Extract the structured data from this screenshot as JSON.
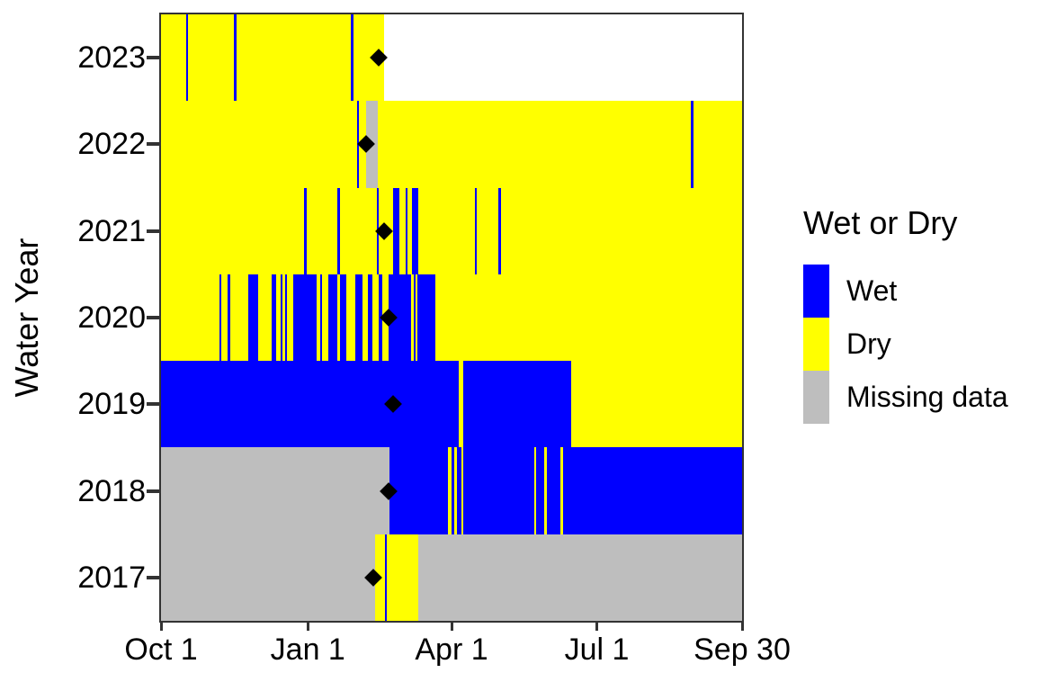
{
  "chart_data": {
    "type": "heatmap",
    "title": "",
    "xlabel": "",
    "ylabel": "Water Year",
    "days_per_year": 365,
    "x_ticks": [
      {
        "label": "Oct 1",
        "day": 0
      },
      {
        "label": "Jan 1",
        "day": 92
      },
      {
        "label": "Apr 1",
        "day": 182
      },
      {
        "label": "Jul 1",
        "day": 273
      },
      {
        "label": "Sep 30",
        "day": 364
      }
    ],
    "y_categories": [
      "2023",
      "2022",
      "2021",
      "2020",
      "2019",
      "2018",
      "2017"
    ],
    "legend": {
      "title": "Wet or Dry",
      "entries": [
        {
          "label": "Wet",
          "status": "wet",
          "color": "#0000FF"
        },
        {
          "label": "Dry",
          "status": "dry",
          "color": "#FFFF00"
        },
        {
          "label": "Missing data",
          "status": "missing",
          "color": "#BEBEBE"
        }
      ]
    },
    "colors": {
      "wet": "#0000FF",
      "dry": "#FFFF00",
      "missing": "#BEBEBE",
      "none": "#FFFFFF",
      "axis": "#333333",
      "marker": "#000000",
      "text": "#000000"
    },
    "rows": [
      {
        "year": "2023",
        "marker_day": 137,
        "marker_date_approx": "Feb 15",
        "segments": [
          [
            0,
            16,
            "dry"
          ],
          [
            16,
            17,
            "wet"
          ],
          [
            17,
            46,
            "dry"
          ],
          [
            46,
            47.5,
            "wet"
          ],
          [
            47.5,
            119.5,
            "dry"
          ],
          [
            119.5,
            121,
            "wet"
          ],
          [
            121,
            140,
            "dry"
          ],
          [
            140,
            365,
            "none"
          ]
        ]
      },
      {
        "year": "2022",
        "marker_day": 129,
        "marker_date_approx": "Feb 7",
        "segments": [
          [
            0,
            123,
            "dry"
          ],
          [
            123,
            124.5,
            "wet"
          ],
          [
            124.5,
            129,
            "dry"
          ],
          [
            129,
            136,
            "missing"
          ],
          [
            136,
            333,
            "dry"
          ],
          [
            333,
            334.5,
            "wet"
          ],
          [
            334.5,
            365,
            "dry"
          ]
        ]
      },
      {
        "year": "2021",
        "marker_day": 140,
        "marker_date_approx": "Feb 18",
        "segments": [
          [
            0,
            90,
            "dry"
          ],
          [
            90,
            91.5,
            "wet"
          ],
          [
            91.5,
            111,
            "dry"
          ],
          [
            111,
            112.5,
            "wet"
          ],
          [
            112.5,
            135.5,
            "dry"
          ],
          [
            135.5,
            136.5,
            "wet"
          ],
          [
            136.5,
            145.5,
            "dry"
          ],
          [
            145.5,
            150,
            "wet"
          ],
          [
            150,
            153.5,
            "dry"
          ],
          [
            153.5,
            155,
            "wet"
          ],
          [
            155,
            157.5,
            "dry"
          ],
          [
            157.5,
            161.5,
            "wet"
          ],
          [
            161.5,
            197,
            "dry"
          ],
          [
            197,
            198.5,
            "wet"
          ],
          [
            198.5,
            212,
            "dry"
          ],
          [
            212,
            213.5,
            "wet"
          ],
          [
            213.5,
            365,
            "dry"
          ]
        ]
      },
      {
        "year": "2020",
        "marker_day": 143,
        "marker_date_approx": "Feb 21",
        "segments": [
          [
            0,
            37,
            "dry"
          ],
          [
            37,
            38,
            "wet"
          ],
          [
            38,
            42,
            "dry"
          ],
          [
            42,
            43.5,
            "wet"
          ],
          [
            43.5,
            55,
            "dry"
          ],
          [
            55,
            61,
            "wet"
          ],
          [
            61,
            69.5,
            "dry"
          ],
          [
            69.5,
            72.5,
            "wet"
          ],
          [
            72.5,
            75,
            "dry"
          ],
          [
            75,
            76.5,
            "wet"
          ],
          [
            76.5,
            78,
            "dry"
          ],
          [
            78,
            79,
            "wet"
          ],
          [
            79,
            83,
            "dry"
          ],
          [
            83,
            98,
            "wet"
          ],
          [
            98,
            100,
            "dry"
          ],
          [
            100,
            101,
            "wet"
          ],
          [
            101,
            105,
            "dry"
          ],
          [
            105,
            111,
            "wet"
          ],
          [
            111,
            112.5,
            "dry"
          ],
          [
            112.5,
            116.5,
            "wet"
          ],
          [
            116.5,
            122,
            "dry"
          ],
          [
            122,
            126.5,
            "wet"
          ],
          [
            126.5,
            130,
            "dry"
          ],
          [
            130,
            132.5,
            "wet"
          ],
          [
            132.5,
            137,
            "dry"
          ],
          [
            137,
            139,
            "wet"
          ],
          [
            139,
            143,
            "dry"
          ],
          [
            143,
            157.3,
            "wet"
          ],
          [
            157.3,
            158.6,
            "dry"
          ],
          [
            158.6,
            160,
            "wet"
          ],
          [
            160,
            160.8,
            "dry"
          ],
          [
            160.8,
            172.5,
            "wet"
          ],
          [
            172.5,
            365,
            "dry"
          ]
        ]
      },
      {
        "year": "2019",
        "marker_day": 146,
        "marker_date_approx": "Feb 24",
        "segments": [
          [
            0,
            187,
            "wet"
          ],
          [
            187,
            190,
            "dry"
          ],
          [
            190,
            257.5,
            "wet"
          ],
          [
            257.5,
            365,
            "dry"
          ]
        ]
      },
      {
        "year": "2018",
        "marker_day": 143,
        "marker_date_approx": "Feb 21",
        "segments": [
          [
            0,
            143.4,
            "missing"
          ],
          [
            143.4,
            180.3,
            "wet"
          ],
          [
            180.3,
            182.3,
            "dry"
          ],
          [
            182.3,
            184.2,
            "wet"
          ],
          [
            184.2,
            186,
            "dry"
          ],
          [
            186,
            188.7,
            "wet"
          ],
          [
            188.7,
            189.7,
            "dry"
          ],
          [
            189.7,
            234.5,
            "wet"
          ],
          [
            234.5,
            235.6,
            "dry"
          ],
          [
            235.6,
            240.9,
            "wet"
          ],
          [
            240.9,
            242.4,
            "dry"
          ],
          [
            242.4,
            250.8,
            "wet"
          ],
          [
            250.8,
            252.3,
            "dry"
          ],
          [
            252.3,
            365,
            "wet"
          ]
        ]
      },
      {
        "year": "2017",
        "marker_day": 133.5,
        "marker_date_approx": "Feb 10",
        "segments": [
          [
            0,
            134.7,
            "missing"
          ],
          [
            134.7,
            140.6,
            "dry"
          ],
          [
            140.6,
            141.6,
            "wet"
          ],
          [
            141.6,
            161.8,
            "dry"
          ],
          [
            161.8,
            365,
            "missing"
          ]
        ]
      }
    ]
  }
}
